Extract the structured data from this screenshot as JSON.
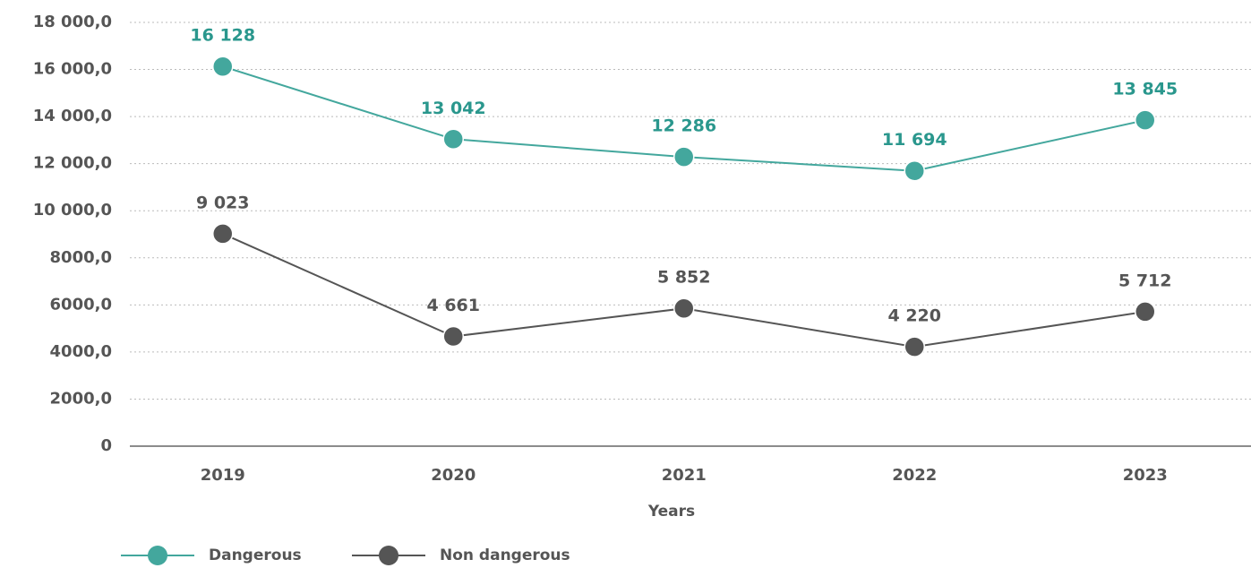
{
  "chart_data": {
    "type": "line",
    "categories": [
      "2019",
      "2020",
      "2021",
      "2022",
      "2023"
    ],
    "x_label": "Years",
    "series": [
      {
        "name": "Dangerous",
        "color": "#43a79d",
        "label_color": "#2a978d",
        "values": [
          16128,
          13042,
          12286,
          11694,
          13845
        ],
        "value_labels": [
          "16 128",
          "13 042",
          "12 286",
          "11 694",
          "13 845"
        ]
      },
      {
        "name": "Non dangerous",
        "color": "#555555",
        "label_color": "#555555",
        "values": [
          9023,
          4661,
          5852,
          4220,
          5712
        ],
        "value_labels": [
          "9 023",
          "4 661",
          "5 852",
          "4 220",
          "5 712"
        ]
      }
    ],
    "ylim": [
      0,
      18000
    ],
    "yticks": [
      0,
      {
        "value": 2000,
        "label": "2000,0"
      },
      {
        "value": 4000,
        "label": "4000,0"
      },
      {
        "value": 6000,
        "label": "6000,0"
      },
      {
        "value": 8000,
        "label": "8000,0"
      },
      {
        "value": 10000,
        "label": "10 000,0"
      },
      {
        "value": 12000,
        "label": "12 000,0"
      },
      {
        "value": 14000,
        "label": "14 000,0"
      },
      {
        "value": 16000,
        "label": "16 000,0"
      },
      {
        "value": 18000,
        "label": "18 000,0"
      }
    ],
    "grid": true,
    "legend": "bottom-left"
  }
}
